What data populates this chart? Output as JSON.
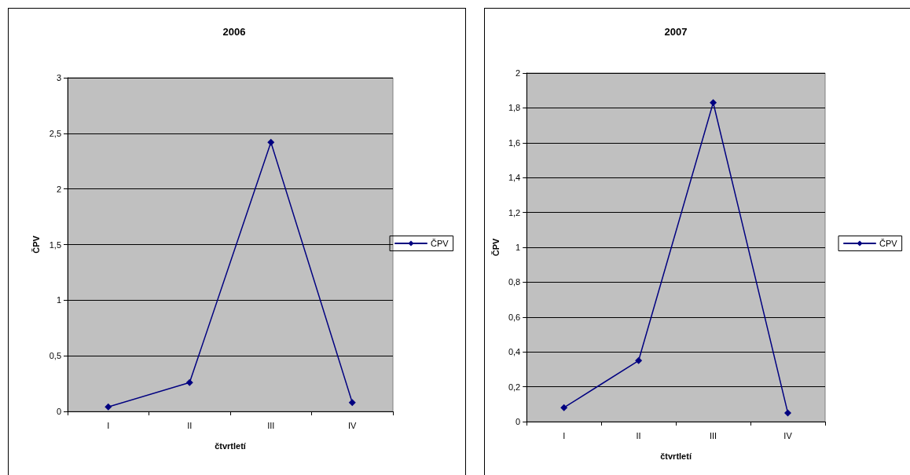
{
  "chart_data": [
    {
      "type": "line",
      "title": "2006",
      "xlabel": "čtvrtletí",
      "ylabel": "ČPV",
      "categories": [
        "I",
        "II",
        "III",
        "IV"
      ],
      "series": [
        {
          "name": "ČPV",
          "color": "#000080",
          "values": [
            0.04,
            0.26,
            2.42,
            0.08
          ]
        }
      ],
      "ylim": [
        0,
        3
      ],
      "yticks": [
        0,
        {
          "value": 0.5,
          "label": "0,5"
        },
        1,
        {
          "value": 1.5,
          "label": "1,5"
        },
        2,
        {
          "value": 2.5,
          "label": "2,5"
        },
        3
      ],
      "grid": "y",
      "legend": "right",
      "marker": "diamond",
      "line_style": "solid"
    },
    {
      "type": "line",
      "title": "2007",
      "xlabel": "čtvrtletí",
      "ylabel": "ČPV",
      "categories": [
        "I",
        "II",
        "III",
        "IV"
      ],
      "series": [
        {
          "name": "ČPV",
          "color": "#000080",
          "values": [
            0.08,
            0.35,
            1.83,
            0.05
          ]
        }
      ],
      "ylim": [
        0,
        2
      ],
      "yticks": [
        0,
        {
          "value": 0.2,
          "label": "0,2"
        },
        {
          "value": 0.4,
          "label": "0,4"
        },
        {
          "value": 0.6,
          "label": "0,6"
        },
        {
          "value": 0.8,
          "label": "0,8"
        },
        1,
        {
          "value": 1.2,
          "label": "1,2"
        },
        {
          "value": 1.4,
          "label": "1,4"
        },
        {
          "value": 1.6,
          "label": "1,6"
        },
        {
          "value": 1.8,
          "label": "1,8"
        },
        2
      ],
      "grid": "y",
      "legend": "right",
      "marker": "diamond",
      "line_style": "solid"
    }
  ]
}
